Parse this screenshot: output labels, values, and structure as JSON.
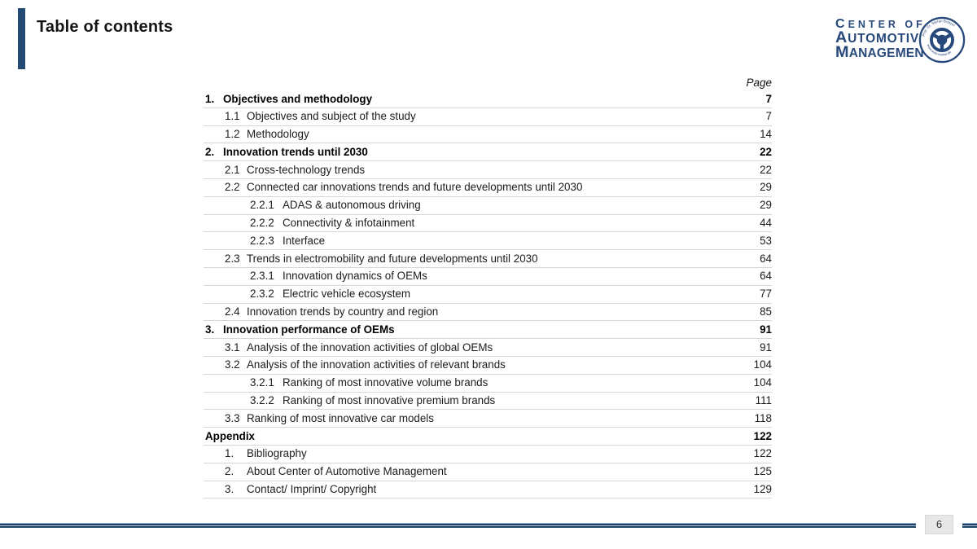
{
  "slide": {
    "title": "Table of contents",
    "page_number": "6"
  },
  "logo": {
    "line1": "CENTER OF",
    "line2": "AUTOMOTIVE",
    "line3": "MANAGEMENT",
    "emblem_top_text": "Prof. Dr. Stefan Bratzel",
    "emblem_bottom_text": "www.auto-institut.de",
    "color": "#27497b"
  },
  "toc": {
    "page_header": "Page",
    "rows": [
      {
        "num": "1.",
        "label": "Objectives and methodology",
        "page": "7",
        "level": 0,
        "bold": true
      },
      {
        "num": "1.1",
        "label": "Objectives and subject of the study",
        "page": "7",
        "level": 1,
        "bold": false
      },
      {
        "num": "1.2",
        "label": "Methodology",
        "page": "14",
        "level": 1,
        "bold": false
      },
      {
        "num": "2.",
        "label": "Innovation trends until 2030",
        "page": "22",
        "level": 0,
        "bold": true
      },
      {
        "num": "2.1",
        "label": "Cross-technology trends",
        "page": "22",
        "level": 1,
        "bold": false
      },
      {
        "num": "2.2",
        "label": "Connected car innovations trends and future developments until 2030",
        "page": "29",
        "level": 1,
        "bold": false
      },
      {
        "num": "2.2.1",
        "label": "ADAS & autonomous driving",
        "page": "29",
        "level": 2,
        "bold": false
      },
      {
        "num": "2.2.2",
        "label": "Connectivity & infotainment",
        "page": "44",
        "level": 2,
        "bold": false
      },
      {
        "num": "2.2.3",
        "label": "Interface",
        "page": "53",
        "level": 2,
        "bold": false
      },
      {
        "num": "2.3",
        "label": "Trends in electromobility and future developments until 2030",
        "page": "64",
        "level": 1,
        "bold": false
      },
      {
        "num": "2.3.1",
        "label": "Innovation dynamics of OEMs",
        "page": "64",
        "level": 2,
        "bold": false
      },
      {
        "num": "2.3.2",
        "label": "Electric vehicle ecosystem",
        "page": "77",
        "level": 2,
        "bold": false
      },
      {
        "num": "2.4",
        "label": "Innovation trends by country and region",
        "page": "85",
        "level": 1,
        "bold": false
      },
      {
        "num": "3.",
        "label": "Innovation performance of OEMs",
        "page": "91",
        "level": 0,
        "bold": true
      },
      {
        "num": "3.1",
        "label": "Analysis of the innovation activities of global OEMs",
        "page": "91",
        "level": 1,
        "bold": false
      },
      {
        "num": "3.2",
        "label": "Analysis of the innovation activities of relevant brands",
        "page": "104",
        "level": 1,
        "bold": false
      },
      {
        "num": "3.2.1",
        "label": "Ranking of most innovative volume brands",
        "page": "104",
        "level": 2,
        "bold": false
      },
      {
        "num": "3.2.2",
        "label": "Ranking of most innovative premium brands",
        "page": "111",
        "level": 2,
        "bold": false
      },
      {
        "num": "3.3",
        "label": "Ranking of most innovative car models",
        "page": "118",
        "level": 1,
        "bold": false
      },
      {
        "num": "",
        "label": "Appendix",
        "page": "122",
        "level": 0,
        "bold": true
      },
      {
        "num": "1.",
        "label": "Bibliography",
        "page": "122",
        "level": 1,
        "bold": false
      },
      {
        "num": "2.",
        "label": "About Center of Automotive Management",
        "page": "125",
        "level": 1,
        "bold": false
      },
      {
        "num": "3.",
        "label": "Contact/ Imprint/ Copyright",
        "page": "129",
        "level": 1,
        "bold": false
      }
    ]
  },
  "footer": {
    "line_color": "#204569"
  }
}
